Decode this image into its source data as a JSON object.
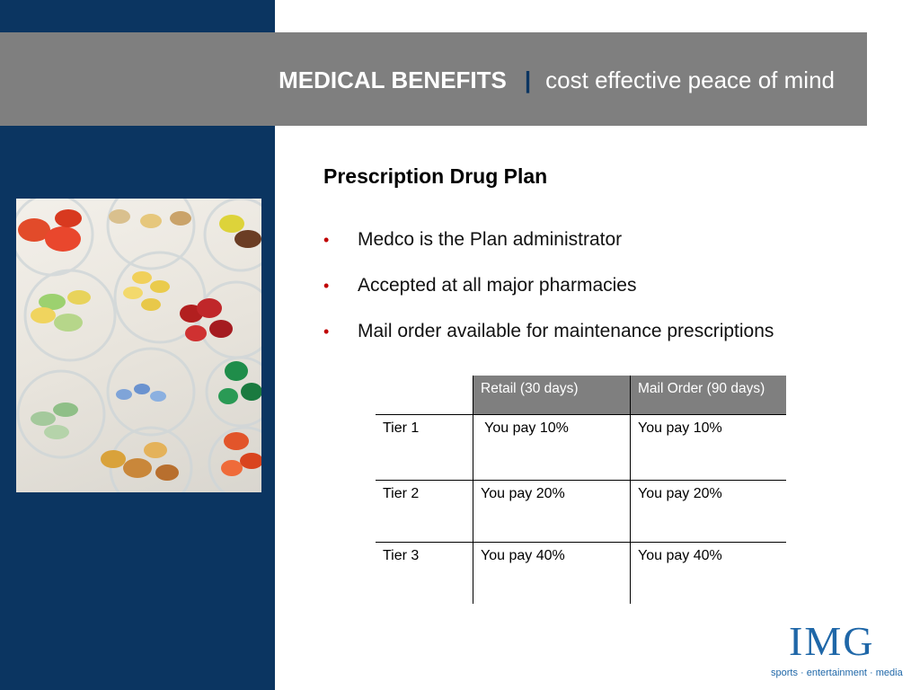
{
  "header": {
    "title_bold": "MEDICAL BENEFITS",
    "separator": "|",
    "subtitle": "cost effective peace of mind"
  },
  "content": {
    "section_title": "Prescription Drug Plan",
    "bullets": [
      "Medco is the Plan administrator",
      "Accepted at all major pharmacies",
      "Mail order available for maintenance prescriptions"
    ]
  },
  "table": {
    "columns": [
      "",
      "Retail (30 days)",
      "Mail Order (90 days)"
    ],
    "rows": [
      {
        "tier": "Tier 1",
        "retail": " You pay 10%",
        "mail": "You pay 10%"
      },
      {
        "tier": "Tier 2",
        "retail": "You pay 20%",
        "mail": "You pay 20%"
      },
      {
        "tier": "Tier 3",
        "retail": "You pay 40%",
        "mail": "You pay 40%"
      }
    ]
  },
  "logo": {
    "mark": "IMG",
    "tagline": "sports · entertainment · media"
  },
  "colors": {
    "navy": "#0b3561",
    "gray_band": "#7f7f7f",
    "bullet_red": "#c00000",
    "logo_blue": "#1f67a8"
  }
}
